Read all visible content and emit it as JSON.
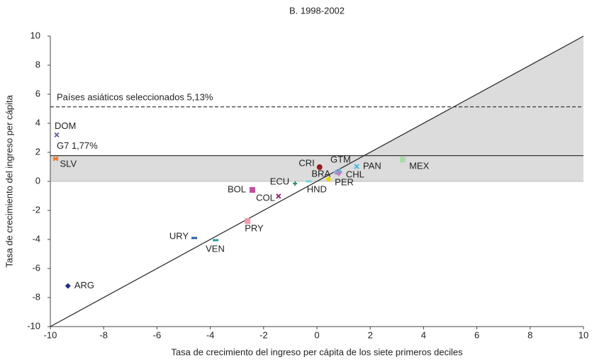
{
  "chart_data": {
    "type": "scatter",
    "title": "B. 1998-2002",
    "x_label": "Tasa de crecimiento del ingreso per cápita de los siete primeros deciles",
    "y_label": "Tasa de crecimiento del ingreso per cápita",
    "xlim": [
      -10,
      10
    ],
    "ylim": [
      -10,
      10
    ],
    "xticks": [
      -10,
      -8,
      -6,
      -4,
      -2,
      0,
      2,
      4,
      6,
      8,
      10
    ],
    "yticks": [
      -10,
      -8,
      -6,
      -4,
      -2,
      0,
      2,
      4,
      6,
      8,
      10
    ],
    "reference_lines": [
      {
        "label": "Países asiáticos seleccionados 5,13%",
        "value": 5.13,
        "style": "dashed"
      },
      {
        "label": "G7 1,77%",
        "value": 1.77,
        "style": "solid"
      }
    ],
    "series": [
      {
        "name": "DOM",
        "color": "#6b6b9f",
        "marker": "x",
        "x": [
          -9.76
        ],
        "values": [
          3.2
        ]
      },
      {
        "name": "SLV",
        "color": "#e8772e",
        "marker": "star",
        "x": [
          -9.8
        ],
        "values": [
          1.56
        ]
      },
      {
        "name": "ARG",
        "color": "#1f2f7a",
        "marker": "diamond",
        "x": [
          -9.34
        ],
        "values": [
          -7.2
        ]
      },
      {
        "name": "URY",
        "color": "#2a5ba8",
        "marker": "dash",
        "x": [
          -4.6
        ],
        "values": [
          -3.9
        ]
      },
      {
        "name": "VEN",
        "color": "#20a0a0",
        "marker": "dash",
        "x": [
          -3.8
        ],
        "values": [
          -4.05
        ]
      },
      {
        "name": "PRY",
        "color": "#f09ab0",
        "marker": "square",
        "x": [
          -2.6
        ],
        "values": [
          -2.73
        ]
      },
      {
        "name": "BOL",
        "color": "#c050a0",
        "marker": "square",
        "x": [
          -2.42
        ],
        "values": [
          -0.59
        ]
      },
      {
        "name": "COL",
        "color": "#8a2a70",
        "marker": "x",
        "x": [
          -1.44
        ],
        "values": [
          -1.02
        ]
      },
      {
        "name": "ECU",
        "color": "#2a8a7a",
        "marker": "plus",
        "x": [
          -0.82
        ],
        "values": [
          -0.15
        ]
      },
      {
        "name": "HND",
        "color": "#6fd0e0",
        "marker": "dash",
        "x": [
          -0.3
        ],
        "values": [
          0.0
        ]
      },
      {
        "name": "CRI",
        "color": "#9a1b1b",
        "marker": "circle",
        "x": [
          0.1
        ],
        "values": [
          0.98
        ]
      },
      {
        "name": "BRA",
        "color": "#7fa8d8",
        "marker": "diamond",
        "x": [
          0.72
        ],
        "values": [
          0.63
        ]
      },
      {
        "name": "GTM",
        "color": "#6bb0e0",
        "marker": "triangle",
        "x": [
          0.85
        ],
        "values": [
          0.78
        ]
      },
      {
        "name": "CHL",
        "color": "#c080c0",
        "marker": "diamond",
        "x": [
          0.82
        ],
        "values": [
          0.54
        ]
      },
      {
        "name": "PER",
        "color": "#e8d800",
        "marker": "diamond",
        "x": [
          0.43
        ],
        "values": [
          0.15
        ]
      },
      {
        "name": "PAN",
        "color": "#40b8e8",
        "marker": "x",
        "x": [
          1.49
        ],
        "values": [
          1.02
        ]
      },
      {
        "name": "MEX",
        "color": "#a8dca8",
        "marker": "square",
        "x": [
          3.22
        ],
        "values": [
          1.5
        ]
      }
    ]
  }
}
